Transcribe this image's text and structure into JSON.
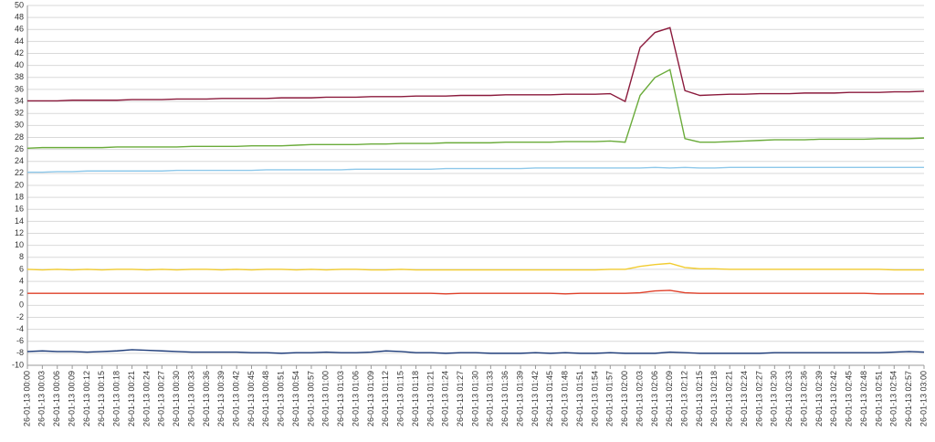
{
  "chart_data": {
    "type": "line",
    "categories": [
      "26-01-13 00:00",
      "26-01-13 00:03",
      "26-01-13 00:06",
      "26-01-13 00:09",
      "26-01-13 00:12",
      "26-01-13 00:15",
      "26-01-13 00:18",
      "26-01-13 00:21",
      "26-01-13 00:24",
      "26-01-13 00:27",
      "26-01-13 00:30",
      "26-01-13 00:33",
      "26-01-13 00:36",
      "26-01-13 00:39",
      "26-01-13 00:42",
      "26-01-13 00:45",
      "26-01-13 00:48",
      "26-01-13 00:51",
      "26-01-13 00:54",
      "26-01-13 00:57",
      "26-01-13 01:00",
      "26-01-13 01:03",
      "26-01-13 01:06",
      "26-01-13 01:09",
      "26-01-13 01:12",
      "26-01-13 01:15",
      "26-01-13 01:18",
      "26-01-13 01:21",
      "26-01-13 01:24",
      "26-01-13 01:27",
      "26-01-13 01:30",
      "26-01-13 01:33",
      "26-01-13 01:36",
      "26-01-13 01:39",
      "26-01-13 01:42",
      "26-01-13 01:45",
      "26-01-13 01:48",
      "26-01-13 01:51",
      "26-01-13 01:54",
      "26-01-13 01:57",
      "26-01-13 02:00",
      "26-01-13 02:03",
      "26-01-13 02:06",
      "26-01-13 02:09",
      "26-01-13 02:12",
      "26-01-13 02:15",
      "26-01-13 02:18",
      "26-01-13 02:21",
      "26-01-13 02:24",
      "26-01-13 02:27",
      "26-01-13 02:30",
      "26-01-13 02:33",
      "26-01-13 02:36",
      "26-01-13 02:39",
      "26-01-13 02:42",
      "26-01-13 02:45",
      "26-01-13 02:48",
      "26-01-13 02:51",
      "26-01-13 02:54",
      "26-01-13 02:57",
      "26-01-13 03:00"
    ],
    "series": [
      {
        "color": "#8b1a3c",
        "values": [
          34.1,
          34.1,
          34.1,
          34.2,
          34.2,
          34.2,
          34.2,
          34.3,
          34.3,
          34.3,
          34.4,
          34.4,
          34.4,
          34.5,
          34.5,
          34.5,
          34.5,
          34.6,
          34.6,
          34.6,
          34.7,
          34.7,
          34.7,
          34.8,
          34.8,
          34.8,
          34.9,
          34.9,
          34.9,
          35.0,
          35.0,
          35.0,
          35.1,
          35.1,
          35.1,
          35.1,
          35.2,
          35.2,
          35.2,
          35.3,
          34.0,
          43.0,
          45.5,
          46.3,
          35.8,
          35.0,
          35.1,
          35.2,
          35.2,
          35.3,
          35.3,
          35.3,
          35.4,
          35.4,
          35.4,
          35.5,
          35.5,
          35.5,
          35.6,
          35.6,
          35.7
        ]
      },
      {
        "color": "#6aab3a",
        "values": [
          26.2,
          26.3,
          26.3,
          26.3,
          26.3,
          26.3,
          26.4,
          26.4,
          26.4,
          26.4,
          26.4,
          26.5,
          26.5,
          26.5,
          26.5,
          26.6,
          26.6,
          26.6,
          26.7,
          26.8,
          26.8,
          26.8,
          26.8,
          26.9,
          26.9,
          27.0,
          27.0,
          27.0,
          27.1,
          27.1,
          27.1,
          27.1,
          27.2,
          27.2,
          27.2,
          27.2,
          27.3,
          27.3,
          27.3,
          27.4,
          27.2,
          35.0,
          38.0,
          39.3,
          27.8,
          27.2,
          27.2,
          27.3,
          27.4,
          27.5,
          27.6,
          27.6,
          27.6,
          27.7,
          27.7,
          27.7,
          27.7,
          27.8,
          27.8,
          27.8,
          27.9
        ]
      },
      {
        "color": "#8ec8ea",
        "values": [
          22.2,
          22.2,
          22.3,
          22.3,
          22.4,
          22.4,
          22.4,
          22.4,
          22.4,
          22.4,
          22.5,
          22.5,
          22.5,
          22.5,
          22.5,
          22.5,
          22.6,
          22.6,
          22.6,
          22.6,
          22.6,
          22.6,
          22.7,
          22.7,
          22.7,
          22.7,
          22.7,
          22.7,
          22.8,
          22.8,
          22.8,
          22.8,
          22.8,
          22.8,
          22.9,
          22.9,
          22.9,
          22.9,
          22.9,
          22.9,
          22.9,
          22.9,
          23.0,
          22.9,
          23.0,
          22.9,
          22.9,
          23.0,
          23.0,
          23.0,
          23.0,
          23.0,
          23.0,
          23.0,
          23.0,
          23.0,
          23.0,
          23.0,
          23.0,
          23.0,
          23.0
        ]
      },
      {
        "color": "#f2cc30",
        "values": [
          6.0,
          5.9,
          6.0,
          5.9,
          6.0,
          5.9,
          6.0,
          6.0,
          5.9,
          6.0,
          5.9,
          6.0,
          6.0,
          5.9,
          6.0,
          5.9,
          6.0,
          6.0,
          5.9,
          6.0,
          5.9,
          6.0,
          6.0,
          5.9,
          5.9,
          6.0,
          5.9,
          5.9,
          5.9,
          5.9,
          5.9,
          5.9,
          5.9,
          5.9,
          5.9,
          5.9,
          5.9,
          5.9,
          5.9,
          6.0,
          6.0,
          6.5,
          6.8,
          7.0,
          6.3,
          6.1,
          6.1,
          6.0,
          6.0,
          6.0,
          6.0,
          6.0,
          6.0,
          6.0,
          6.0,
          6.0,
          6.0,
          6.0,
          5.9,
          5.9,
          5.9
        ]
      },
      {
        "color": "#e0402a",
        "values": [
          2.0,
          2.0,
          2.0,
          2.0,
          2.0,
          2.0,
          2.0,
          2.0,
          2.0,
          2.0,
          2.0,
          2.0,
          2.0,
          2.0,
          2.0,
          2.0,
          2.0,
          2.0,
          2.0,
          2.0,
          2.0,
          2.0,
          2.0,
          2.0,
          2.0,
          2.0,
          2.0,
          2.0,
          1.9,
          2.0,
          2.0,
          2.0,
          2.0,
          2.0,
          2.0,
          2.0,
          1.9,
          2.0,
          2.0,
          2.0,
          2.0,
          2.1,
          2.4,
          2.5,
          2.1,
          2.0,
          2.0,
          2.0,
          2.0,
          2.0,
          2.0,
          2.0,
          2.0,
          2.0,
          2.0,
          2.0,
          2.0,
          1.9,
          1.9,
          1.9,
          1.9
        ]
      },
      {
        "color": "#1f3d7a",
        "values": [
          -7.7,
          -7.6,
          -7.7,
          -7.7,
          -7.8,
          -7.7,
          -7.6,
          -7.4,
          -7.5,
          -7.6,
          -7.7,
          -7.8,
          -7.8,
          -7.8,
          -7.8,
          -7.9,
          -7.9,
          -8.0,
          -7.9,
          -7.9,
          -7.8,
          -7.9,
          -7.9,
          -7.8,
          -7.6,
          -7.7,
          -7.9,
          -7.9,
          -8.0,
          -7.9,
          -7.9,
          -8.0,
          -8.0,
          -8.0,
          -7.9,
          -8.0,
          -7.9,
          -8.0,
          -8.0,
          -7.9,
          -8.0,
          -8.0,
          -8.0,
          -7.8,
          -7.9,
          -8.0,
          -8.0,
          -8.0,
          -8.0,
          -8.0,
          -7.9,
          -7.9,
          -7.9,
          -7.9,
          -7.9,
          -7.9,
          -7.9,
          -7.9,
          -7.8,
          -7.7,
          -7.8
        ]
      }
    ],
    "ylim": [
      -10,
      50
    ],
    "yticks": [
      -10,
      -8,
      -6,
      -4,
      -2,
      0,
      2,
      4,
      6,
      8,
      10,
      12,
      14,
      16,
      18,
      20,
      22,
      24,
      26,
      28,
      30,
      32,
      34,
      36,
      38,
      40,
      42,
      44,
      46,
      48,
      50
    ],
    "grid": true
  }
}
